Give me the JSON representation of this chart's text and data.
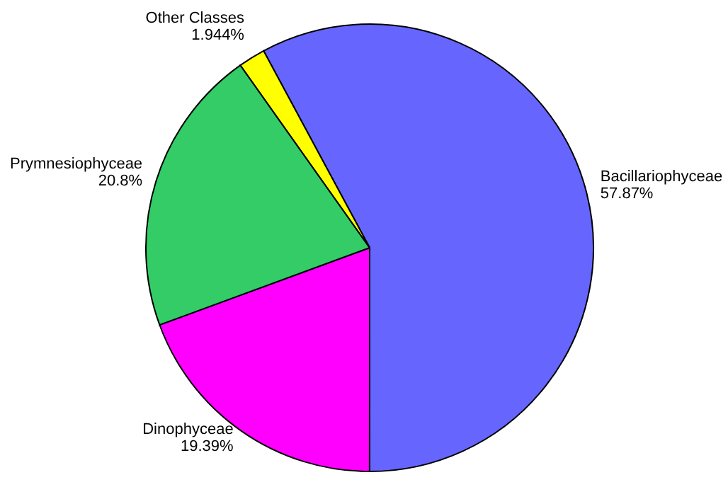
{
  "chart_data": {
    "type": "pie",
    "categories": [
      "Bacillariophyceae",
      "Dinophyceae",
      "Prymnesiophyceae",
      "Other Classes"
    ],
    "values": [
      57.87,
      19.39,
      20.8,
      1.944
    ],
    "value_labels": [
      "57.87%",
      "19.39%",
      "20.8%",
      "1.944%"
    ],
    "colors": [
      "#6666ff",
      "#ff00ff",
      "#33cc66",
      "#ffff00"
    ],
    "legend": false
  }
}
